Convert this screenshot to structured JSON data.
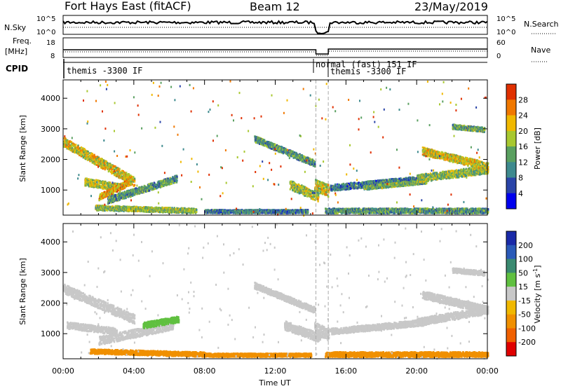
{
  "header": {
    "radar": "Fort Hays East (fitACF)",
    "beam": "Beam 12",
    "date": "23/May/2019"
  },
  "nsky_panel": {
    "left_label": "N.Sky",
    "right_label": "N.Search",
    "left_ticks": [
      "10^5",
      "10^0"
    ],
    "right_ticks": [
      "10^5",
      "10^0"
    ]
  },
  "freq_panel": {
    "left_label_1": "Freq.",
    "left_label_2": "[MHz]",
    "right_label": "Nave",
    "left_ticks": [
      "18",
      "8"
    ],
    "right_ticks": [
      "60",
      "0"
    ]
  },
  "cpid_panel": {
    "label": "CPID",
    "modes": [
      "themis -3300 IF",
      "normal (fast) 151 IF",
      "themis -3300 IF"
    ]
  },
  "colors": {
    "power_scale": [
      "#0000ee",
      "#2a44a8",
      "#3e8a8e",
      "#5aa060",
      "#a8c830",
      "#f0b800",
      "#f07800",
      "#e03000"
    ],
    "velocity_scale": [
      "#1a2aa8",
      "#2a5ab8",
      "#3a8a70",
      "#60c040",
      "#c8c8c8",
      "#f0b800",
      "#f09000",
      "#f06000",
      "#e00000"
    ],
    "mode_boundary": "#aaaaaa"
  },
  "chart_data": [
    {
      "type": "heatmap",
      "name": "power-panel",
      "xlabel": "",
      "ylabel": "Slant Range [km]",
      "xlim": [
        0,
        24
      ],
      "ylim": [
        180,
        4600
      ],
      "yticks": [
        "1000",
        "2000",
        "3000",
        "4000"
      ],
      "xticks": [
        "00:00",
        "04:00",
        "08:00",
        "12:00",
        "16:00",
        "20:00",
        "00:00"
      ],
      "colorbar_label": "Power [dB]",
      "colorbar_ticks": [
        "4",
        "8",
        "12",
        "16",
        "20",
        "24",
        "28"
      ],
      "colorbar_range": [
        0,
        32
      ],
      "mode_boundaries_hours": [
        14.3,
        15.0
      ],
      "echo_bands": [
        {
          "t": [
            0.0,
            4.0
          ],
          "r": [
            2600,
            1300
          ],
          "width": 300,
          "value": 20
        },
        {
          "t": [
            1.2,
            3.2
          ],
          "r": [
            1300,
            1100
          ],
          "width": 250,
          "value": 18
        },
        {
          "t": [
            2.0,
            3.8
          ],
          "r": [
            800,
            1300
          ],
          "width": 200,
          "value": 22
        },
        {
          "t": [
            2.5,
            6.4
          ],
          "r": [
            700,
            1400
          ],
          "width": 220,
          "value": 12
        },
        {
          "t": [
            1.8,
            7.5
          ],
          "r": [
            450,
            350
          ],
          "width": 160,
          "value": 16
        },
        {
          "t": [
            8.0,
            13.8
          ],
          "r": [
            330,
            330
          ],
          "width": 110,
          "value": 10
        },
        {
          "t": [
            10.8,
            14.2
          ],
          "r": [
            2700,
            1900
          ],
          "width": 200,
          "value": 12
        },
        {
          "t": [
            12.8,
            14.4
          ],
          "r": [
            1200,
            800
          ],
          "width": 300,
          "value": 18
        },
        {
          "t": [
            14.2,
            15.0
          ],
          "r": [
            1200,
            1000
          ],
          "width": 400,
          "value": 20
        },
        {
          "t": [
            15.1,
            20.5
          ],
          "r": [
            1100,
            1400
          ],
          "width": 200,
          "value": 10
        },
        {
          "t": [
            17.0,
            20.5
          ],
          "r": [
            1100,
            1300
          ],
          "width": 120,
          "value": 14
        },
        {
          "t": [
            20.0,
            24.0
          ],
          "r": [
            1400,
            1700
          ],
          "width": 250,
          "value": 16
        },
        {
          "t": [
            20.3,
            24.0
          ],
          "r": [
            2300,
            1800
          ],
          "width": 250,
          "value": 20
        },
        {
          "t": [
            14.8,
            24.0
          ],
          "r": [
            350,
            350
          ],
          "width": 160,
          "value": 12
        },
        {
          "t": [
            22.0,
            23.8
          ],
          "r": [
            3100,
            3000
          ],
          "width": 150,
          "value": 14
        }
      ]
    },
    {
      "type": "heatmap",
      "name": "velocity-panel",
      "xlabel": "Time UT",
      "ylabel": "Slant Range [km]",
      "xlim": [
        0,
        24
      ],
      "ylim": [
        180,
        4600
      ],
      "yticks": [
        "1000",
        "2000",
        "3000",
        "4000"
      ],
      "xticks": [
        "00:00",
        "04:00",
        "08:00",
        "12:00",
        "16:00",
        "20:00",
        "00:00"
      ],
      "colorbar_label": "Velocity [m s^-1]",
      "colorbar_ticks": [
        "200",
        "100",
        "50",
        "15",
        "-15",
        "-50",
        "-100",
        "-200"
      ],
      "mode_boundaries_hours": [
        14.3,
        15.0
      ],
      "echo_bands": [
        {
          "t": [
            0.0,
            4.0
          ],
          "r": [
            2500,
            1500
          ],
          "width": 300,
          "value": 0
        },
        {
          "t": [
            0.2,
            3.0
          ],
          "r": [
            1300,
            1100
          ],
          "width": 220,
          "value": 0
        },
        {
          "t": [
            2.0,
            6.2
          ],
          "r": [
            800,
            1300
          ],
          "width": 280,
          "value": 0
        },
        {
          "t": [
            4.5,
            6.5
          ],
          "r": [
            1300,
            1500
          ],
          "width": 200,
          "value": 30
        },
        {
          "t": [
            1.5,
            8.0
          ],
          "r": [
            450,
            350
          ],
          "width": 150,
          "value": -60
        },
        {
          "t": [
            8.0,
            14.0
          ],
          "r": [
            330,
            330
          ],
          "width": 110,
          "value": -60
        },
        {
          "t": [
            10.8,
            14.2
          ],
          "r": [
            2600,
            1800
          ],
          "width": 200,
          "value": 0
        },
        {
          "t": [
            12.5,
            14.5
          ],
          "r": [
            1300,
            900
          ],
          "width": 300,
          "value": 0
        },
        {
          "t": [
            14.2,
            15.0
          ],
          "r": [
            1200,
            1000
          ],
          "width": 400,
          "value": 0
        },
        {
          "t": [
            15.1,
            20.5
          ],
          "r": [
            1100,
            1400
          ],
          "width": 200,
          "value": 0
        },
        {
          "t": [
            20.0,
            24.0
          ],
          "r": [
            1400,
            1800
          ],
          "width": 250,
          "value": 0
        },
        {
          "t": [
            20.3,
            24.0
          ],
          "r": [
            2300,
            1800
          ],
          "width": 250,
          "value": 0
        },
        {
          "t": [
            14.8,
            24.0
          ],
          "r": [
            350,
            350
          ],
          "width": 160,
          "value": -60
        },
        {
          "t": [
            22.0,
            23.8
          ],
          "r": [
            3100,
            3000
          ],
          "width": 150,
          "value": 0
        }
      ]
    }
  ]
}
